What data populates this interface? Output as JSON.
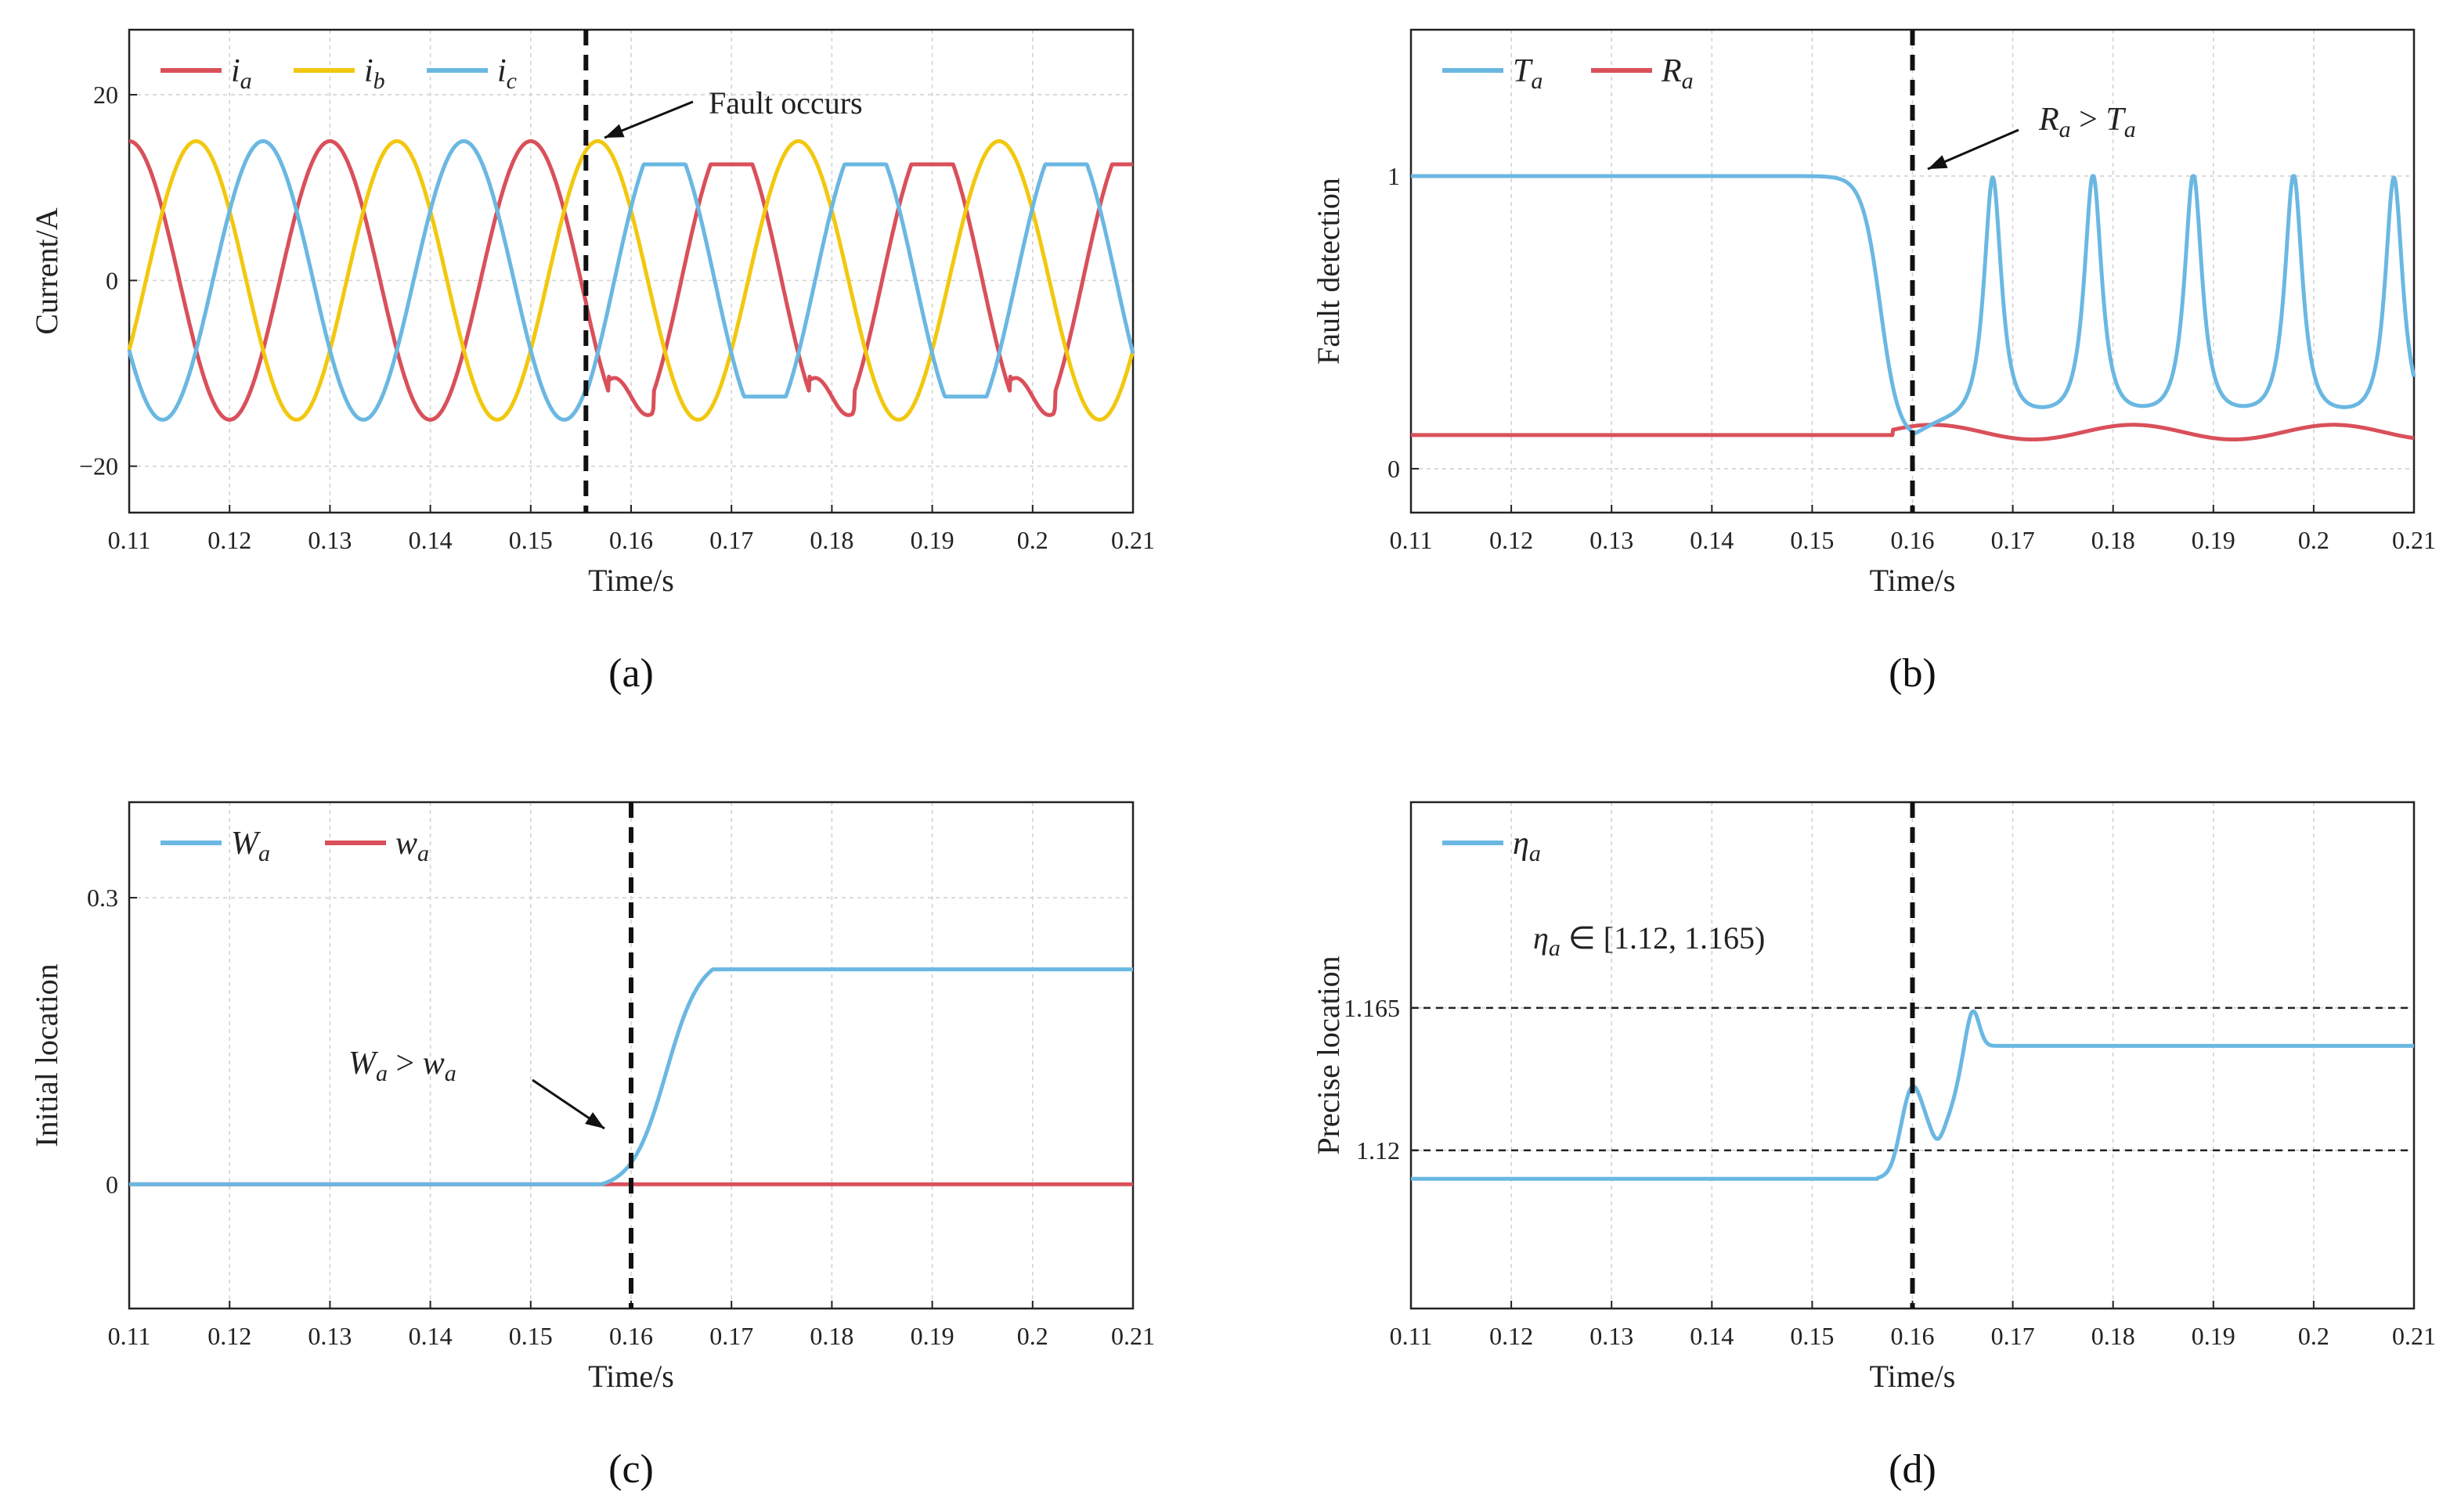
{
  "colors": {
    "red": "#d9505a",
    "yellow": "#f2c80f",
    "blue": "#6ab8e2"
  },
  "chart_data": [
    {
      "type": "line",
      "panel_label": "(a)",
      "xlabel": "Time/s",
      "ylabel": "Current/A",
      "xlim": [
        0.11,
        0.21
      ],
      "ylim": [
        -25,
        27
      ],
      "xticks": [
        "0.11",
        "0.12",
        "0.13",
        "0.14",
        "0.15",
        "0.16",
        "0.17",
        "0.18",
        "0.19",
        "0.2",
        "0.21"
      ],
      "yticks": [
        {
          "value": 20,
          "label": "20"
        },
        {
          "value": 0,
          "label": "0"
        },
        {
          "value": -20,
          "label": "−20"
        }
      ],
      "legend": [
        "i",
        "i",
        "i"
      ],
      "legend_sub": [
        "a",
        "b",
        "c"
      ],
      "fault_time": 0.1555,
      "annotation": "Fault occurs",
      "series_desc": {
        "amplitude": 15,
        "frequency_hz": 50,
        "post_fault_amplitude_a": 12.5,
        "post_fault_amplitude_c": 12.5
      }
    },
    {
      "type": "line",
      "panel_label": "(b)",
      "xlabel": "Time/s",
      "ylabel": "Fault detection",
      "xlim": [
        0.11,
        0.21
      ],
      "ylim": [
        -0.15,
        1.5
      ],
      "xticks": [
        "0.11",
        "0.12",
        "0.13",
        "0.14",
        "0.15",
        "0.16",
        "0.17",
        "0.18",
        "0.19",
        "0.2",
        "0.21"
      ],
      "yticks": [
        {
          "value": 1,
          "label": "1"
        },
        {
          "value": 0,
          "label": "0"
        }
      ],
      "legend": [
        "T",
        "R"
      ],
      "legend_sub": [
        "a",
        "a"
      ],
      "fault_time": 0.16,
      "annotation_lhs": "R",
      "annotation_rel": " > ",
      "annotation_rhs": "T",
      "annotation_sub": "a",
      "spike_times": [
        0.168,
        0.178,
        0.188,
        0.198,
        0.208
      ]
    },
    {
      "type": "line",
      "panel_label": "(c)",
      "xlabel": "Time/s",
      "ylabel": "Initial location",
      "xlim": [
        0.11,
        0.21
      ],
      "ylim": [
        -0.13,
        0.4
      ],
      "xticks": [
        "0.11",
        "0.12",
        "0.13",
        "0.14",
        "0.15",
        "0.16",
        "0.17",
        "0.18",
        "0.19",
        "0.2",
        "0.21"
      ],
      "yticks": [
        {
          "value": 0.3,
          "label": "0.3"
        },
        {
          "value": 0,
          "label": "0"
        }
      ],
      "legend": [
        "W",
        "w"
      ],
      "legend_sub": [
        "a",
        "a"
      ],
      "fault_time": 0.16,
      "annotation_lhs": "W",
      "annotation_rel": " > ",
      "annotation_rhs": "w",
      "annotation_sub": "a",
      "final_value": 0.225
    },
    {
      "type": "line",
      "panel_label": "(d)",
      "xlabel": "Time/s",
      "ylabel": "Precise location",
      "xlim": [
        0.11,
        0.21
      ],
      "ylim": [
        1.07,
        1.23
      ],
      "xticks": [
        "0.11",
        "0.12",
        "0.13",
        "0.14",
        "0.15",
        "0.16",
        "0.17",
        "0.18",
        "0.19",
        "0.2",
        "0.21"
      ],
      "yticks": [
        {
          "value": 1.165,
          "label": "1.165"
        },
        {
          "value": 1.12,
          "label": "1.12"
        }
      ],
      "legend": [
        "η"
      ],
      "legend_sub": [
        "a"
      ],
      "fault_time": 0.16,
      "band": [
        1.12,
        1.165
      ],
      "annotation_sym": "η",
      "annotation_sub": "a",
      "annotation_text": " ∈ [1.12, 1.165)",
      "initial_value": 1.111,
      "final_value": 1.153
    }
  ]
}
